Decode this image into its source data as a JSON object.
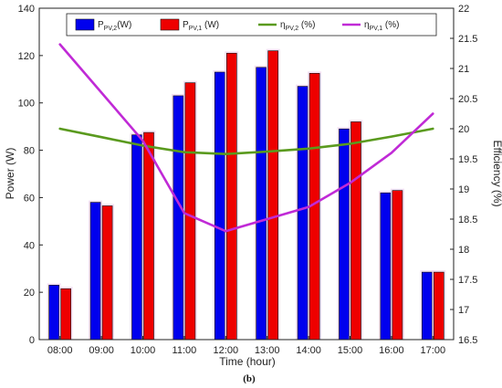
{
  "chart_data": {
    "type": "bar",
    "categories": [
      "08:00",
      "09:00",
      "10:00",
      "11:00",
      "12:00",
      "13:00",
      "14:00",
      "15:00",
      "16:00",
      "17:00"
    ],
    "series": [
      {
        "name": "P_PV,2(W)",
        "kind": "bar",
        "axis": "left",
        "color": "#0000ee",
        "values": [
          23,
          58,
          86.5,
          103,
          113,
          115,
          107,
          89,
          62,
          28.5
        ]
      },
      {
        "name": "P_PV,1 (W)",
        "kind": "bar",
        "axis": "left",
        "color": "#ee0000",
        "values": [
          21.5,
          56.5,
          87.5,
          108.5,
          121,
          122,
          112.5,
          92,
          63,
          28.5
        ]
      },
      {
        "name": "η_PV,2 (%)",
        "kind": "line",
        "axis": "right",
        "color": "#5a9a1e",
        "values": [
          20.0,
          19.86,
          19.72,
          19.61,
          19.58,
          19.62,
          19.67,
          19.75,
          19.87,
          20.0
        ]
      },
      {
        "name": "η_PV,1 (%)",
        "kind": "line",
        "axis": "right",
        "color": "#c02ad6",
        "values": [
          21.4,
          20.6,
          19.8,
          18.6,
          18.3,
          18.5,
          18.7,
          19.1,
          19.6,
          20.25
        ]
      }
    ],
    "xlabel": "Time (hour)",
    "ylabel": "Power (W)",
    "y2label": "Efficiency (%)",
    "ylim": [
      0,
      140
    ],
    "y2lim": [
      16.5,
      22
    ],
    "yticks": [
      0,
      20,
      40,
      60,
      80,
      100,
      120,
      140
    ],
    "y2ticks": [
      16.5,
      17,
      17.5,
      18,
      18.5,
      19,
      19.5,
      20,
      20.5,
      21,
      21.5,
      22
    ],
    "legend_position": "top"
  },
  "caption": "(b)",
  "legend": [
    {
      "main": "P",
      "sub": "PV,2",
      "suffix": "(W)",
      "kind": "bar",
      "color": "#0000ee"
    },
    {
      "main": "P",
      "sub": "PV,1",
      "suffix": " (W)",
      "kind": "bar",
      "color": "#ee0000"
    },
    {
      "main": "η",
      "sub": "PV,2",
      "suffix": " (%)",
      "kind": "line",
      "color": "#5a9a1e"
    },
    {
      "main": "η",
      "sub": "PV,1",
      "suffix": " (%)",
      "kind": "line",
      "color": "#c02ad6"
    }
  ]
}
